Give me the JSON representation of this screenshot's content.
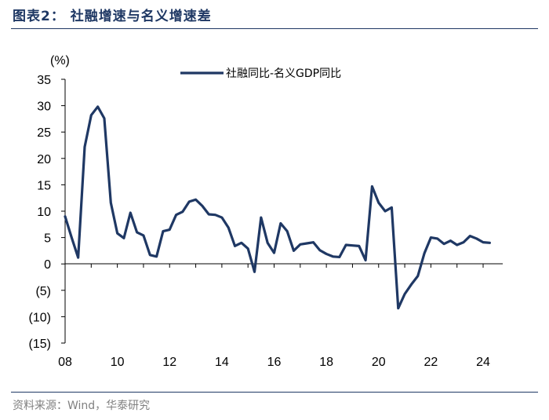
{
  "header": {
    "title": "图表2：  社融增速与名义增速差",
    "source": "资料来源：Wind，华泰研究"
  },
  "colors": {
    "series": "#1f3864",
    "rule": "#1f3864",
    "axis": "#000000"
  },
  "chart_data": {
    "type": "line",
    "title": "社融增速与名义增速差",
    "ylabel": "(%)",
    "xlabel": "",
    "ylim": [
      -15,
      35
    ],
    "y_ticks": [
      35,
      30,
      25,
      20,
      15,
      10,
      5,
      0,
      -5,
      -10,
      -15
    ],
    "y_tick_labels": [
      "35",
      "30",
      "25",
      "20",
      "15",
      "10",
      "5",
      "0",
      "(5)",
      "(10)",
      "(15)"
    ],
    "xlim": [
      2008.0,
      2024.75
    ],
    "x_ticks": [
      2008,
      2010,
      2012,
      2014,
      2016,
      2018,
      2020,
      2022,
      2024
    ],
    "x_tick_labels": [
      "08",
      "10",
      "12",
      "14",
      "16",
      "18",
      "20",
      "22",
      "24"
    ],
    "grid": false,
    "legend_position": "top-center",
    "series": [
      {
        "name": "社融同比-名义GDP同比",
        "x": [
          2008.0,
          2008.25,
          2008.5,
          2008.75,
          2009.0,
          2009.25,
          2009.5,
          2009.75,
          2010.0,
          2010.25,
          2010.5,
          2010.75,
          2011.0,
          2011.25,
          2011.5,
          2011.75,
          2012.0,
          2012.25,
          2012.5,
          2012.75,
          2013.0,
          2013.25,
          2013.5,
          2013.75,
          2014.0,
          2014.25,
          2014.5,
          2014.75,
          2015.0,
          2015.25,
          2015.5,
          2015.75,
          2016.0,
          2016.25,
          2016.5,
          2016.75,
          2017.0,
          2017.25,
          2017.5,
          2017.75,
          2018.0,
          2018.25,
          2018.5,
          2018.75,
          2019.0,
          2019.25,
          2019.5,
          2019.75,
          2020.0,
          2020.25,
          2020.5,
          2020.75,
          2021.0,
          2021.25,
          2021.5,
          2021.75,
          2022.0,
          2022.25,
          2022.5,
          2022.75,
          2023.0,
          2023.25,
          2023.5,
          2023.75,
          2024.0,
          2024.25
        ],
        "values": [
          9.0,
          5.0,
          1.2,
          22.2,
          28.2,
          29.8,
          27.6,
          11.6,
          5.8,
          4.9,
          9.7,
          6.0,
          5.4,
          1.7,
          1.4,
          6.2,
          6.5,
          9.3,
          9.9,
          11.8,
          12.2,
          11.0,
          9.4,
          9.3,
          8.8,
          6.9,
          3.4,
          4.0,
          2.9,
          -1.5,
          8.8,
          4.0,
          2.1,
          7.7,
          6.2,
          2.5,
          3.7,
          3.9,
          4.1,
          2.6,
          1.9,
          1.4,
          1.3,
          3.6,
          3.5,
          3.4,
          0.7,
          14.7,
          11.6,
          10.0,
          10.7,
          -8.4,
          -5.7,
          -3.9,
          -2.3,
          2.0,
          5.0,
          4.8,
          3.8,
          4.4,
          3.6,
          4.1,
          5.3,
          4.8,
          4.1,
          4.0
        ]
      }
    ]
  }
}
